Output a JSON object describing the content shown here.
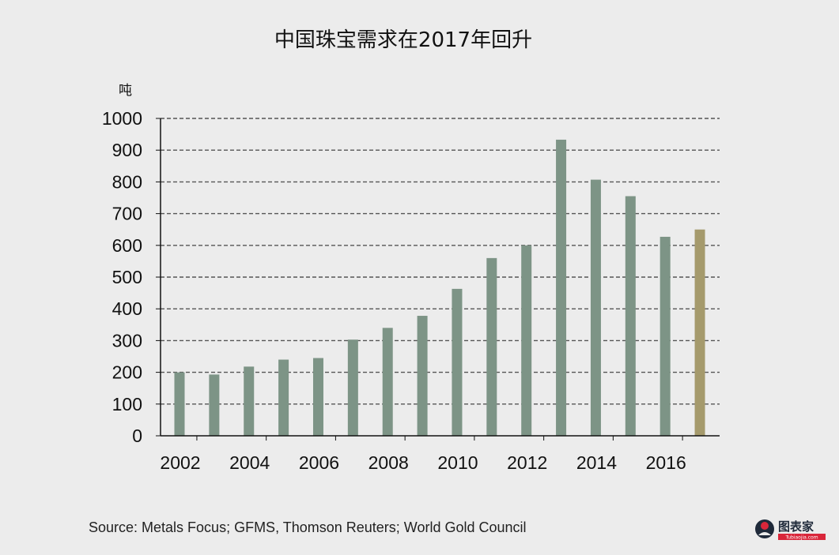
{
  "chart_data": {
    "type": "bar",
    "title": "中国珠宝需求在2017年回升",
    "ylabel": "吨",
    "xlabel": "",
    "ylim": [
      0,
      1000
    ],
    "yticks": [
      0,
      100,
      200,
      300,
      400,
      500,
      600,
      700,
      800,
      900,
      1000
    ],
    "x": [
      2002,
      2003,
      2004,
      2005,
      2006,
      2007,
      2008,
      2009,
      2010,
      2011,
      2012,
      2013,
      2014,
      2015,
      2016,
      2017
    ],
    "xtick_labels": [
      "2002",
      "2004",
      "2006",
      "2008",
      "2010",
      "2012",
      "2014",
      "2016"
    ],
    "values": [
      200,
      193,
      218,
      240,
      245,
      303,
      340,
      378,
      463,
      560,
      600,
      933,
      807,
      755,
      627,
      650
    ],
    "highlight_index": 15,
    "grid": true,
    "colors": {
      "bar": "#7d9486",
      "highlight": "#a59a6c",
      "grid": "#555555"
    }
  },
  "source": "Source: Metals Focus; GFMS, Thomson Reuters; World Gold Council",
  "watermark": {
    "text": "图表家",
    "subtext": "Tubiaojia.com"
  }
}
